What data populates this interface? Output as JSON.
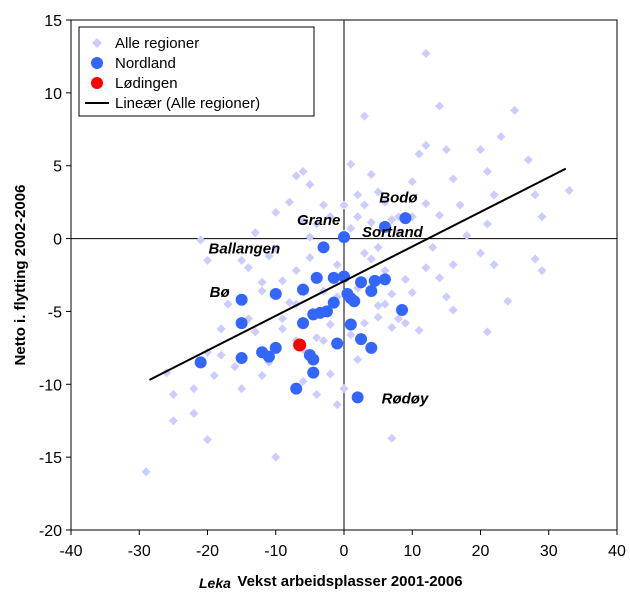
{
  "chart_data": {
    "type": "scatter",
    "xlabel": "Vekst arbeidsplasser 2001-2006",
    "ylabel": "Netto i. flytting 2002-2006",
    "xlim": [
      -40,
      40
    ],
    "ylim": [
      -20,
      15
    ],
    "xticks": [
      "-40",
      "-30",
      "-20",
      "-10",
      "0",
      "10",
      "20",
      "30",
      "40"
    ],
    "yticks": [
      "15",
      "10",
      "5",
      "0",
      "-5",
      "-10",
      "-15",
      "-20"
    ],
    "grid": false,
    "legend_position": "top-left",
    "overlay_text": "Leka",
    "series": [
      {
        "name": "Alle regioner",
        "marker": "diamond",
        "color": "#ccccff",
        "points": [
          [
            -29,
            -16
          ],
          [
            -25,
            -12.5
          ],
          [
            -25,
            -10.7
          ],
          [
            -26,
            -9.2
          ],
          [
            -22,
            -12
          ],
          [
            -20,
            -13.8
          ],
          [
            -22,
            -10.3
          ],
          [
            -19,
            -9.4
          ],
          [
            -10,
            -15
          ],
          [
            -20,
            -7.8
          ],
          [
            -18,
            -6.2
          ],
          [
            -16,
            -8.8
          ],
          [
            -15,
            -10.3
          ],
          [
            -17,
            -4.5
          ],
          [
            -14,
            -5.5
          ],
          [
            -12,
            -3.6
          ],
          [
            -20,
            -1.5
          ],
          [
            -21,
            -0.1
          ],
          [
            -15,
            -1.5
          ],
          [
            -11,
            -1.2
          ],
          [
            -13,
            0.4
          ],
          [
            -10,
            1.8
          ],
          [
            -8,
            2.5
          ],
          [
            -7,
            4.3
          ],
          [
            -6,
            4.6
          ],
          [
            -5,
            3.7
          ],
          [
            -4,
            1.0
          ],
          [
            -3,
            2.3
          ],
          [
            -5,
            -1.3
          ],
          [
            -7,
            -2.2
          ],
          [
            -9,
            -2.9
          ],
          [
            -8,
            -4.4
          ],
          [
            -9,
            -6.2
          ],
          [
            -7,
            -7.0
          ],
          [
            -11,
            -8.5
          ],
          [
            -12,
            -9.4
          ],
          [
            -6,
            -9.8
          ],
          [
            -4,
            -10.7
          ],
          [
            -1,
            -11.4
          ],
          [
            -2,
            -9.3
          ],
          [
            0,
            -10.3
          ],
          [
            1,
            -6.6
          ],
          [
            -2,
            -5.9
          ],
          [
            -3,
            -3.6
          ],
          [
            -1,
            -1.8
          ],
          [
            1,
            0.7
          ],
          [
            2,
            1.5
          ],
          [
            3,
            2.3
          ],
          [
            0,
            2.3
          ],
          [
            2,
            3.0
          ],
          [
            1,
            5.1
          ],
          [
            3,
            8.4
          ],
          [
            4,
            4.4
          ],
          [
            5,
            3.2
          ],
          [
            6,
            2.5
          ],
          [
            7,
            1.3
          ],
          [
            8,
            0.4
          ],
          [
            5,
            -0.6
          ],
          [
            4,
            -1.4
          ],
          [
            6,
            -2.2
          ],
          [
            7,
            -3.8
          ],
          [
            5,
            -4.6
          ],
          [
            8,
            -5.5
          ],
          [
            9,
            -2.8
          ],
          [
            10,
            3.9
          ],
          [
            11,
            5.8
          ],
          [
            12,
            6.4
          ],
          [
            12,
            12.7
          ],
          [
            14,
            9.1
          ],
          [
            15,
            6.1
          ],
          [
            16,
            4.1
          ],
          [
            17,
            2.3
          ],
          [
            18,
            0.2
          ],
          [
            13,
            -0.6
          ],
          [
            14,
            -2.7
          ],
          [
            15,
            -4.0
          ],
          [
            16,
            -4.9
          ],
          [
            12,
            -2.0
          ],
          [
            10,
            -3.7
          ],
          [
            20,
            6.1
          ],
          [
            21,
            4.6
          ],
          [
            22,
            3.0
          ],
          [
            21,
            1.0
          ],
          [
            20,
            -1.0
          ],
          [
            22,
            -1.8
          ],
          [
            21,
            -6.4
          ],
          [
            23,
            7.0
          ],
          [
            25,
            8.8
          ],
          [
            27,
            5.4
          ],
          [
            28,
            3.0
          ],
          [
            29,
            1.5
          ],
          [
            33,
            3.3
          ],
          [
            28,
            -1.4
          ],
          [
            24,
            -4.3
          ],
          [
            29,
            -2.2
          ],
          [
            7,
            -13.7
          ],
          [
            2,
            -8.3
          ],
          [
            -14,
            -2.0
          ],
          [
            -12,
            -3.0
          ],
          [
            -10,
            -0.7
          ],
          [
            -13,
            -6.4
          ],
          [
            -18,
            -8.0
          ],
          [
            -1,
            -4.0
          ],
          [
            0,
            0.3
          ],
          [
            4,
            1.1
          ],
          [
            8,
            1.5
          ],
          [
            10,
            1.5
          ],
          [
            12,
            2.4
          ],
          [
            14,
            1.6
          ],
          [
            16,
            -1.8
          ],
          [
            -6,
            1.2
          ],
          [
            -5,
            0.1
          ],
          [
            -2,
            1.5
          ],
          [
            3,
            -1.0
          ],
          [
            -9,
            -5.5
          ],
          [
            -7,
            -4.5
          ],
          [
            2,
            -3.4
          ],
          [
            6,
            -4.5
          ],
          [
            9,
            -5.8
          ],
          [
            11,
            -6.3
          ],
          [
            -4,
            -6.8
          ],
          [
            -6,
            -7.6
          ],
          [
            -3,
            -7.0
          ],
          [
            3,
            -5.8
          ],
          [
            5,
            -5.4
          ],
          [
            7,
            -6.1
          ]
        ]
      },
      {
        "name": "Nordland",
        "marker": "circle",
        "color": "#3366ff",
        "points": [
          [
            -21,
            -8.5
          ],
          [
            -15,
            -8.2
          ],
          [
            -15,
            -5.8
          ],
          [
            -15,
            -4.2
          ],
          [
            -12,
            -7.8
          ],
          [
            -10,
            -7.5
          ],
          [
            -11,
            -8.1
          ],
          [
            -10,
            -3.8
          ],
          [
            -6,
            -3.5
          ],
          [
            -7,
            -10.3
          ],
          [
            -5,
            -8.0
          ],
          [
            -4.5,
            -8.3
          ],
          [
            -4.5,
            -9.2
          ],
          [
            -6,
            -5.8
          ],
          [
            -4.5,
            -5.2
          ],
          [
            -3.5,
            -5.1
          ],
          [
            -2.5,
            -5.0
          ],
          [
            -4,
            -2.7
          ],
          [
            -1.5,
            -2.7
          ],
          [
            -1.5,
            -4.4
          ],
          [
            -1,
            -7.2
          ],
          [
            0,
            -2.6
          ],
          [
            0.5,
            -3.8
          ],
          [
            1,
            -5.9
          ],
          [
            1,
            -4.1
          ],
          [
            1.5,
            -4.3
          ],
          [
            2.5,
            -3.0
          ],
          [
            2.5,
            -6.9
          ],
          [
            4,
            -7.5
          ],
          [
            4,
            -3.6
          ],
          [
            4.5,
            -2.9
          ],
          [
            6,
            -2.8
          ],
          [
            6,
            0.8
          ],
          [
            8.5,
            -4.9
          ],
          [
            9,
            1.4
          ],
          [
            2,
            -10.9
          ],
          [
            0,
            0.1
          ],
          [
            -3,
            -0.6
          ]
        ]
      },
      {
        "name": "Lødingen",
        "marker": "circle",
        "color": "#ff0000",
        "points": [
          [
            -6.5,
            -7.3
          ]
        ]
      }
    ],
    "trendline": {
      "name": "Lineær (Alle regioner)",
      "x": [
        -28.5,
        32.5
      ],
      "y": [
        -9.7,
        4.8
      ]
    },
    "annotations": [
      {
        "text": "Bodø",
        "x": 10,
        "y": 1.5
      },
      {
        "text": "Grane",
        "x": 0,
        "y": 0.1
      },
      {
        "text": "Ballangen",
        "x": -3,
        "y": -0.6
      },
      {
        "text": "Sortland",
        "x": 6,
        "y": 0.8
      },
      {
        "text": "Bø",
        "x": -15,
        "y": -4.2
      },
      {
        "text": "Rødøy",
        "x": 2,
        "y": -10.9
      }
    ]
  }
}
